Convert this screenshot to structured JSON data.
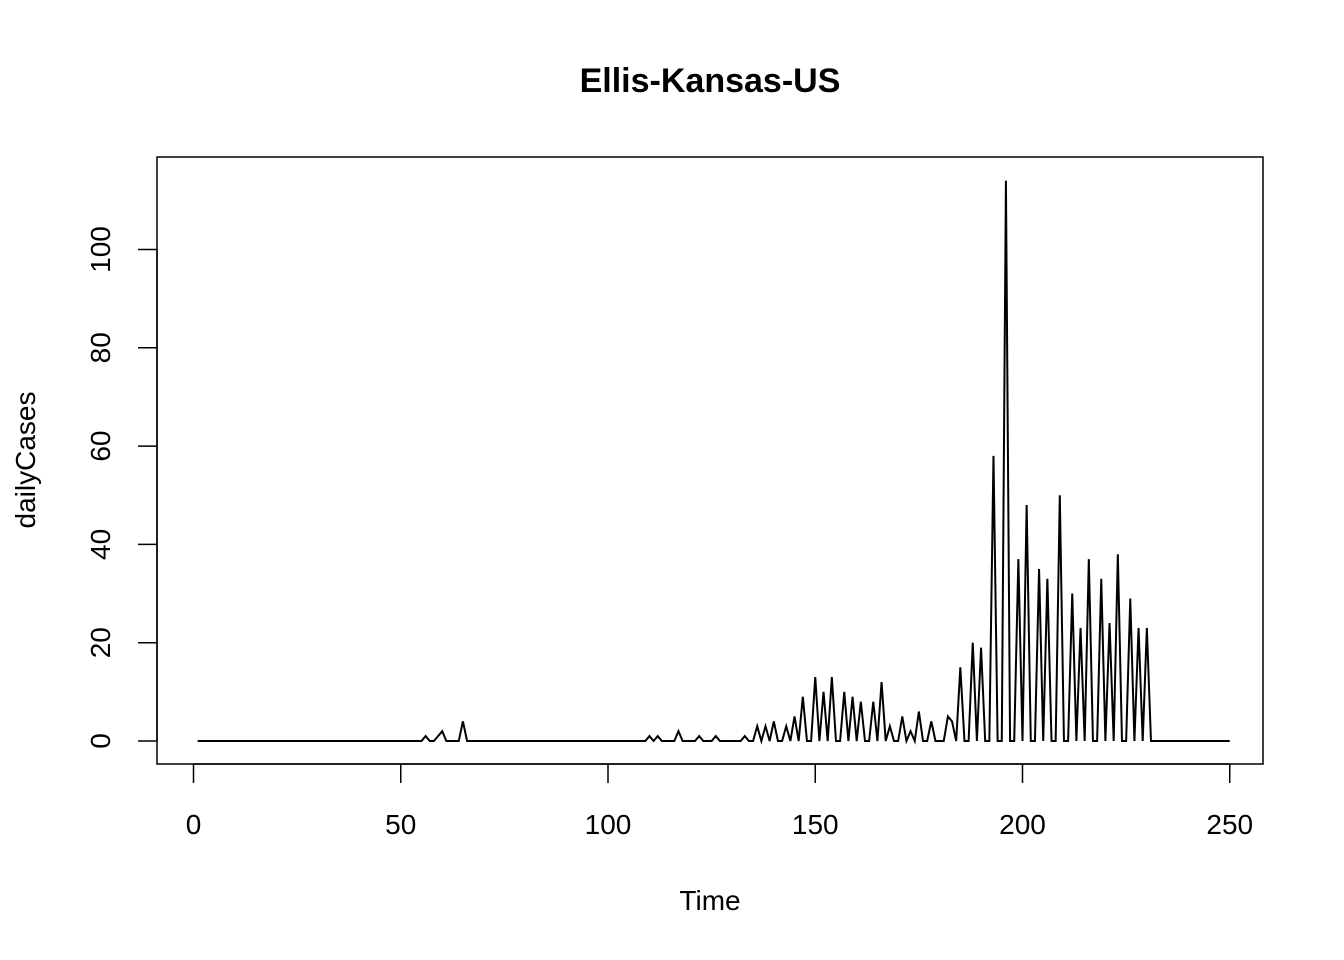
{
  "chart_data": {
    "type": "line",
    "title": "Ellis-Kansas-US",
    "xlabel": "Time",
    "ylabel": "dailyCases",
    "xlim": [
      1,
      248
    ],
    "ylim": [
      0,
      114
    ],
    "x_ticks": [
      0,
      50,
      100,
      150,
      200,
      250
    ],
    "y_ticks": [
      0,
      20,
      40,
      60,
      80,
      100
    ],
    "grid": false,
    "legend": "none",
    "line_color": "#000000",
    "series": [
      {
        "x_start": 1,
        "values": [
          0,
          0,
          0,
          0,
          0,
          0,
          0,
          0,
          0,
          0,
          0,
          0,
          0,
          0,
          0,
          0,
          0,
          0,
          0,
          0,
          0,
          0,
          0,
          0,
          0,
          0,
          0,
          0,
          0,
          0,
          0,
          0,
          0,
          0,
          0,
          0,
          0,
          0,
          0,
          0,
          0,
          0,
          0,
          0,
          0,
          0,
          0,
          0,
          0,
          0,
          0,
          0,
          0,
          0,
          0,
          1,
          0,
          0,
          1,
          2,
          0,
          0,
          0,
          0,
          4,
          0,
          0,
          0,
          0,
          0,
          0,
          0,
          0,
          0,
          0,
          0,
          0,
          0,
          0,
          0,
          0,
          0,
          0,
          0,
          0,
          0,
          0,
          0,
          0,
          0,
          0,
          0,
          0,
          0,
          0,
          0,
          0,
          0,
          0,
          0,
          0,
          0,
          0,
          0,
          0,
          0,
          0,
          0,
          0,
          1,
          0,
          1,
          0,
          0,
          0,
          0,
          2,
          0,
          0,
          0,
          0,
          1,
          0,
          0,
          0,
          1,
          0,
          0,
          0,
          0,
          0,
          0,
          1,
          0,
          0,
          3,
          0,
          3,
          0,
          4,
          0,
          0,
          3,
          0,
          5,
          0,
          9,
          0,
          0,
          13,
          0,
          10,
          0,
          13,
          0,
          0,
          10,
          0,
          9,
          0,
          8,
          0,
          0,
          8,
          0,
          12,
          0,
          3,
          0,
          0,
          5,
          0,
          2,
          0,
          6,
          0,
          0,
          4,
          0,
          0,
          0,
          5,
          4,
          0,
          15,
          0,
          0,
          20,
          0,
          19,
          0,
          0,
          58,
          0,
          0,
          114,
          0,
          0,
          37,
          0,
          48,
          0,
          0,
          35,
          0,
          33,
          0,
          0,
          50,
          0,
          0,
          30,
          0,
          23,
          0,
          37,
          0,
          0,
          33,
          0,
          24,
          0,
          38,
          0,
          0,
          29,
          0,
          23,
          0,
          23,
          0,
          0,
          0,
          0,
          0,
          0,
          0,
          0,
          0,
          0,
          0,
          0,
          0,
          0,
          0,
          0,
          0,
          0,
          0,
          0
        ]
      }
    ]
  }
}
